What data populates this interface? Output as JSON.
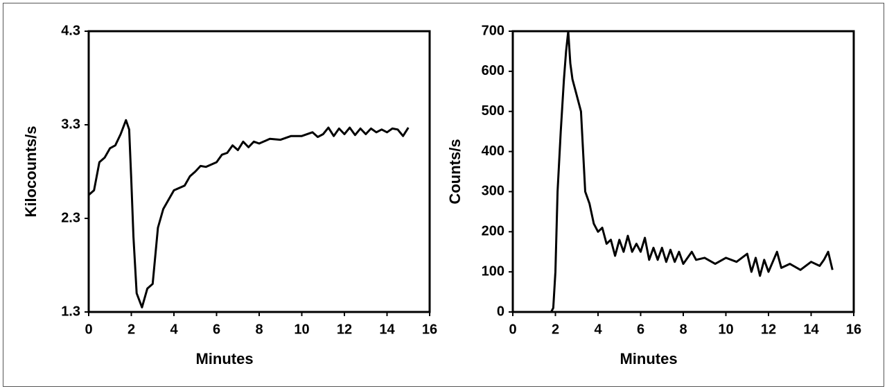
{
  "chart_data": [
    {
      "type": "line",
      "ylabel": "Kilocounts/s",
      "xlabel": "Minutes",
      "color": "#000000",
      "xlim": [
        0,
        16
      ],
      "xticks": [
        0,
        2,
        4,
        6,
        8,
        10,
        12,
        14,
        16
      ],
      "ylim": [
        1.3,
        4.3
      ],
      "yticks": [
        1.3,
        2.3,
        3.3,
        4.3
      ],
      "x": [
        0,
        0.25,
        0.5,
        0.75,
        1.0,
        1.25,
        1.5,
        1.75,
        1.9,
        2.0,
        2.1,
        2.25,
        2.5,
        2.75,
        3.0,
        3.25,
        3.5,
        3.75,
        4.0,
        4.5,
        4.75,
        5.0,
        5.25,
        5.5,
        6.0,
        6.25,
        6.5,
        6.75,
        7.0,
        7.25,
        7.5,
        7.75,
        8.0,
        8.5,
        9.0,
        9.5,
        10.0,
        10.5,
        10.75,
        11.0,
        11.25,
        11.5,
        11.75,
        12.0,
        12.25,
        12.5,
        12.75,
        13.0,
        13.25,
        13.5,
        13.75,
        14.0,
        14.25,
        14.5,
        14.75,
        15.0
      ],
      "values": [
        2.55,
        2.6,
        2.9,
        2.95,
        3.05,
        3.08,
        3.2,
        3.35,
        3.25,
        2.7,
        2.1,
        1.5,
        1.35,
        1.55,
        1.6,
        2.2,
        2.4,
        2.5,
        2.6,
        2.65,
        2.75,
        2.8,
        2.86,
        2.85,
        2.9,
        2.98,
        3.0,
        3.08,
        3.03,
        3.12,
        3.06,
        3.12,
        3.1,
        3.15,
        3.14,
        3.18,
        3.18,
        3.22,
        3.17,
        3.2,
        3.27,
        3.18,
        3.26,
        3.2,
        3.27,
        3.19,
        3.26,
        3.2,
        3.26,
        3.22,
        3.25,
        3.22,
        3.26,
        3.25,
        3.18,
        3.27
      ]
    },
    {
      "type": "line",
      "ylabel": "Counts/s",
      "xlabel": "Minutes",
      "color": "#000000",
      "xlim": [
        0,
        16
      ],
      "xticks": [
        0,
        2,
        4,
        6,
        8,
        10,
        12,
        14,
        16
      ],
      "ylim": [
        0,
        700
      ],
      "yticks": [
        0,
        100,
        200,
        300,
        400,
        500,
        600,
        700
      ],
      "x": [
        0,
        1.0,
        1.8,
        1.9,
        2.0,
        2.1,
        2.25,
        2.4,
        2.5,
        2.6,
        2.7,
        2.8,
        3.0,
        3.2,
        3.4,
        3.6,
        3.8,
        4.0,
        4.2,
        4.4,
        4.6,
        4.8,
        5.0,
        5.2,
        5.4,
        5.6,
        5.8,
        6.0,
        6.2,
        6.4,
        6.6,
        6.8,
        7.0,
        7.2,
        7.4,
        7.6,
        7.8,
        8.0,
        8.4,
        8.6,
        9.0,
        9.5,
        10.0,
        10.5,
        11.0,
        11.2,
        11.4,
        11.6,
        11.8,
        12.0,
        12.4,
        12.6,
        13.0,
        13.5,
        14.0,
        14.4,
        14.6,
        14.8,
        15.0
      ],
      "values": [
        0,
        0,
        0,
        10,
        100,
        300,
        450,
        580,
        650,
        700,
        620,
        580,
        540,
        500,
        300,
        270,
        220,
        200,
        210,
        170,
        180,
        140,
        180,
        150,
        190,
        150,
        170,
        150,
        185,
        130,
        160,
        130,
        160,
        125,
        155,
        125,
        150,
        120,
        150,
        130,
        135,
        120,
        135,
        125,
        145,
        100,
        135,
        90,
        130,
        100,
        150,
        110,
        120,
        105,
        125,
        115,
        130,
        150,
        105
      ]
    }
  ]
}
